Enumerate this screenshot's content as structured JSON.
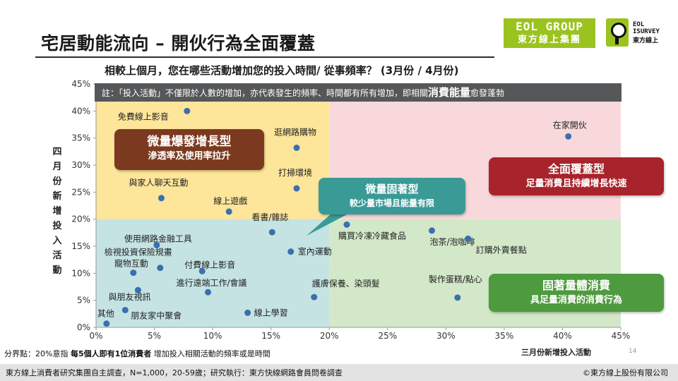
{
  "title": "宅居動能流向 – 開伙行為全面覆蓋",
  "subtitle": "相較上個月，您在哪些活動增加您的投入時間/ 從事頻率？ (3月份 / 4月份)",
  "logos": {
    "eol_line1": "EOL GROUP",
    "eol_line2": "東方線上集團",
    "isurvey_line1": "EOL\nISURVEY",
    "isurvey_line2": "東方線上"
  },
  "note": {
    "prefix": "註：「投入活動」不僅限於人數的增加，亦代表發生的頻率、時間都有所有增加，即相關",
    "emphasis": "消費能量",
    "suffix": "愈發蓬勃"
  },
  "quadrants": {
    "micro_explosive": {
      "title": "微量爆發增長型",
      "desc": "滲透率及使用率拉升",
      "color": "#7b3a20"
    },
    "full_coverage": {
      "title": "全面覆蓋型",
      "desc": "足量消費且持續增長快速",
      "color": "#a8232b"
    },
    "micro_fixed": {
      "title": "微量固著型",
      "desc": "較少量市場且能量有限",
      "color": "#3a9a96"
    },
    "fixed_volume": {
      "title": "固著量體消費",
      "desc": "具足量消費的消費行為",
      "color": "#4e9a3e"
    }
  },
  "split_note": {
    "prefix": "分界點：20%意指 ",
    "bold": "每5個人即有1位消費者",
    "suffix": " 增加投入相關活動的頻率或是時間"
  },
  "page_number": "14",
  "footer": {
    "source": "東方線上消費者研究集團自主調查，N=1,000，20-59歲；研究執行：東方快線網路會員問卷調查",
    "copyright": "©東方線上股份有限公司"
  },
  "colors": {
    "yellow_zone": "#fde59a",
    "pink_zone": "#f8d8db",
    "teal_zone": "#c5e3e3",
    "green_zone": "#d2e8c8",
    "point": "#3a6fb0"
  },
  "chart_data": {
    "type": "scatter",
    "xlabel": "三月份新增投入活動",
    "ylabel": "四月份新增投入活動",
    "xlim": [
      0,
      45
    ],
    "ylim": [
      0,
      45
    ],
    "x_ticks": [
      "0%",
      "5%",
      "10%",
      "15%",
      "20%",
      "25%",
      "30%",
      "35%",
      "40%",
      "45%"
    ],
    "y_ticks": [
      "0%",
      "5%",
      "10%",
      "15%",
      "20%",
      "25%",
      "30%",
      "35%",
      "40%",
      "45%"
    ],
    "threshold": {
      "x": 20,
      "y": 20
    },
    "grid": false,
    "points": [
      {
        "label": "在家開伙",
        "x": 40.5,
        "y": 35.3
      },
      {
        "label": "免費線上影音",
        "x": 7.8,
        "y": 40.0
      },
      {
        "label": "逛網路購物",
        "x": 17.2,
        "y": 33.2
      },
      {
        "label": "與家人聊天互動",
        "x": 5.6,
        "y": 23.9
      },
      {
        "label": "打掃環境",
        "x": 17.2,
        "y": 25.7
      },
      {
        "label": "線上遊戲",
        "x": 11.4,
        "y": 21.4
      },
      {
        "label": "看書/雜誌",
        "x": 15.1,
        "y": 17.6
      },
      {
        "label": "購買冷凍冷藏食品",
        "x": 21.5,
        "y": 19.0
      },
      {
        "label": "泡茶/泡咖啡",
        "x": 28.8,
        "y": 17.9
      },
      {
        "label": "訂購外賣餐點",
        "x": 31.9,
        "y": 16.4
      },
      {
        "label": "使用網路金融工具",
        "x": 5.2,
        "y": 15.2
      },
      {
        "label": "室內運動",
        "x": 16.7,
        "y": 14.0
      },
      {
        "label": "檢視投資保險規畫",
        "x": 5.5,
        "y": 11.0
      },
      {
        "label": "寵物互動",
        "x": 3.2,
        "y": 10.1
      },
      {
        "label": "付費線上影音",
        "x": 9.1,
        "y": 10.4
      },
      {
        "label": "進行遠端工作/會議",
        "x": 9.6,
        "y": 6.5
      },
      {
        "label": "製作蛋糕/點心",
        "x": 31.0,
        "y": 5.5
      },
      {
        "label": "護膚保養、染頭髮",
        "x": 18.7,
        "y": 5.6
      },
      {
        "label": "與朋友視訊",
        "x": 3.6,
        "y": 6.9
      },
      {
        "label": "朋友家中聚會",
        "x": 2.5,
        "y": 3.2
      },
      {
        "label": "線上學習",
        "x": 13.0,
        "y": 2.7
      },
      {
        "label": "其他",
        "x": 0.9,
        "y": 0.7
      }
    ]
  }
}
